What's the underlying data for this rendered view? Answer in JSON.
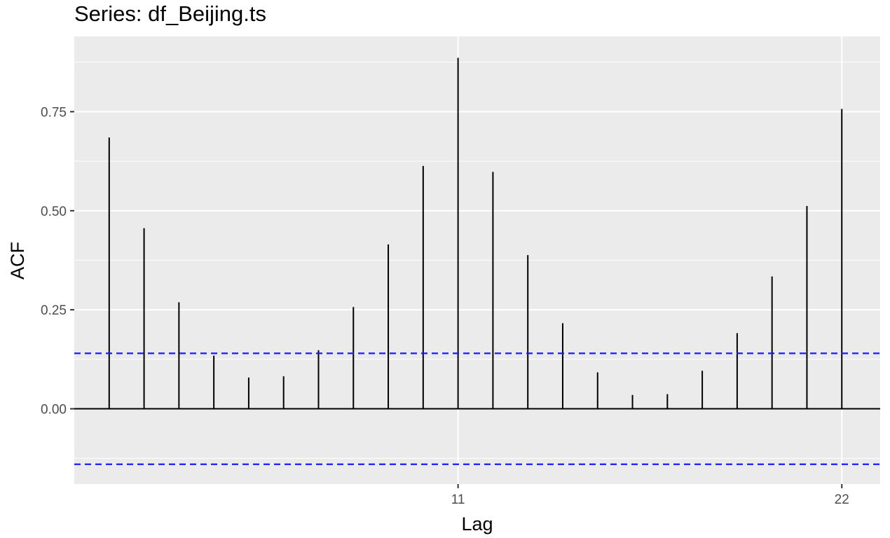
{
  "chart_data": {
    "type": "bar",
    "title": "Series: df_Beijing.ts",
    "xlabel": "Lag",
    "ylabel": "ACF",
    "x": [
      1,
      2,
      3,
      4,
      5,
      6,
      7,
      8,
      9,
      10,
      11,
      12,
      13,
      14,
      15,
      16,
      17,
      18,
      19,
      20,
      21,
      22
    ],
    "values": [
      0.685,
      0.456,
      0.269,
      0.134,
      0.079,
      0.082,
      0.148,
      0.257,
      0.415,
      0.613,
      0.886,
      0.598,
      0.388,
      0.216,
      0.092,
      0.035,
      0.037,
      0.096,
      0.191,
      0.334,
      0.512,
      0.757
    ],
    "confidence_limit": 0.14,
    "xlim": [
      0,
      23.1
    ],
    "ylim": [
      -0.19,
      0.94
    ],
    "x_ticks": [
      11,
      22
    ],
    "x_tick_labels": [
      "11",
      "22"
    ],
    "y_ticks": [
      0.0,
      0.25,
      0.5,
      0.75
    ],
    "y_tick_labels": [
      "0.00",
      "0.25",
      "0.50",
      "0.75"
    ],
    "grid": true,
    "colors": {
      "panel_background": "#ebebeb",
      "grid": "#ffffff",
      "bar": "#000000",
      "zero_line": "#000000",
      "confidence_line": "#1a1aff"
    }
  }
}
